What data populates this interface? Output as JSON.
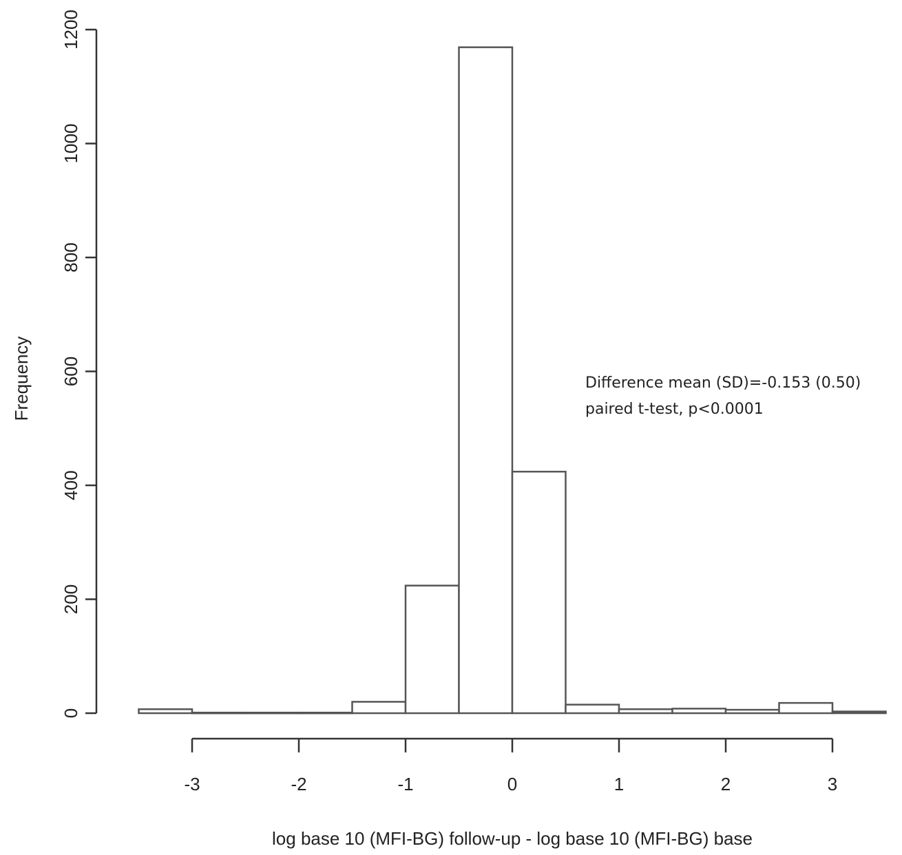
{
  "chart_data": {
    "type": "bar",
    "xlabel": "log base 10 (MFI-BG) follow-up - log base 10 (MFI-BG) base",
    "ylabel": "Frequency",
    "x_ticks": [
      "-3",
      "-2",
      "-1",
      "0",
      "1",
      "2",
      "3"
    ],
    "y_ticks": [
      "0",
      "200",
      "400",
      "600",
      "800",
      "1000",
      "1200"
    ],
    "xlim": [
      -3.5,
      3.5
    ],
    "ylim": [
      0,
      1200
    ],
    "bin_width": 0.5,
    "bins": [
      {
        "from": -3.5,
        "to": -3.0,
        "value": 7
      },
      {
        "from": -3.0,
        "to": -2.5,
        "value": 1
      },
      {
        "from": -2.5,
        "to": -2.0,
        "value": 1
      },
      {
        "from": -2.0,
        "to": -1.5,
        "value": 1
      },
      {
        "from": -1.5,
        "to": -1.0,
        "value": 20
      },
      {
        "from": -1.0,
        "to": -0.5,
        "value": 224
      },
      {
        "from": -0.5,
        "to": 0.0,
        "value": 1169
      },
      {
        "from": 0.0,
        "to": 0.5,
        "value": 424
      },
      {
        "from": 0.5,
        "to": 1.0,
        "value": 15
      },
      {
        "from": 1.0,
        "to": 1.5,
        "value": 7
      },
      {
        "from": 1.5,
        "to": 2.0,
        "value": 8
      },
      {
        "from": 2.0,
        "to": 2.5,
        "value": 6
      },
      {
        "from": 2.5,
        "to": 3.0,
        "value": 18
      },
      {
        "from": 3.0,
        "to": 3.5,
        "value": 3
      }
    ],
    "annotations": [
      "Difference mean (SD)=-0.153 (0.50)",
      "paired t-test, p<0.0001"
    ],
    "grid": false,
    "legend": "none"
  },
  "colors": {
    "bar_fill": "#ffffff",
    "bar_stroke": "#555555",
    "axis": "#333333"
  }
}
